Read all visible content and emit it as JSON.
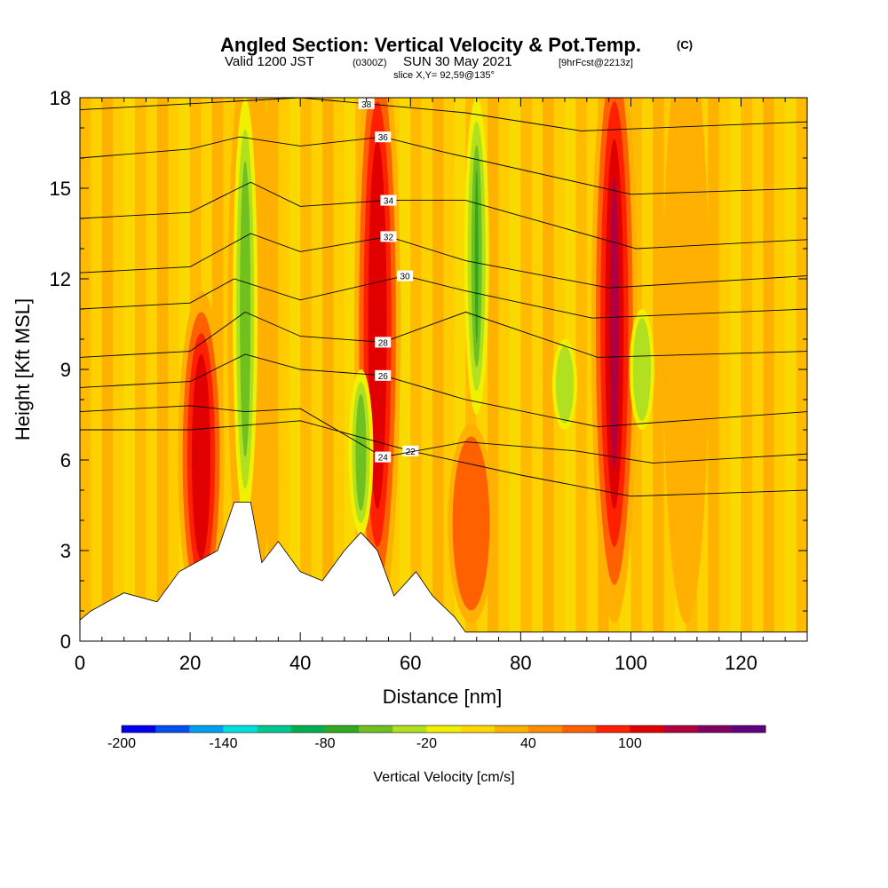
{
  "title": {
    "main": "Angled Section: Vertical Velocity & Pot.Temp.",
    "main_unit": "(C)",
    "valid_prefix": "Valid 1200 JST",
    "valid_utc": "(0300Z)",
    "valid_date": "SUN 30 May 2021",
    "valid_fcst": "[9hrFcst@2213z]",
    "slice": "slice X,Y= 92,59@135°"
  },
  "chart_data": {
    "type": "heatmap",
    "xlabel": "Distance [nm]",
    "ylabel": "Height [Kft MSL]",
    "xlim": [
      0,
      132
    ],
    "ylim": [
      0,
      18
    ],
    "x_ticks": [
      "0",
      "20",
      "40",
      "60",
      "80",
      "100",
      "120"
    ],
    "y_ticks": [
      "0",
      "3",
      "6",
      "9",
      "12",
      "15",
      "18"
    ],
    "colorbar": {
      "label": "Vertical Velocity [cm/s]",
      "tick_labels": [
        "-200",
        "-140",
        "-80",
        "-20",
        "40",
        "100"
      ],
      "colors": [
        "#0000f0",
        "#0050f0",
        "#00a0f0",
        "#00e0e0",
        "#00c890",
        "#00b050",
        "#30a820",
        "#70c020",
        "#b0e020",
        "#f0f000",
        "#ffd800",
        "#ffb000",
        "#ff8c00",
        "#ff6000",
        "#ff2000",
        "#e00000",
        "#b00040",
        "#800060",
        "#600080"
      ]
    },
    "updraft_columns": [
      {
        "x": 22,
        "top": 10.0,
        "strength": 100
      },
      {
        "x": 31,
        "top": 18.0,
        "strength": 40
      },
      {
        "x": 54,
        "top": 18.0,
        "strength": 100
      },
      {
        "x": 71,
        "top": 6.0,
        "strength": 60
      },
      {
        "x": 97,
        "top": 18.0,
        "strength": 120
      },
      {
        "x": 110,
        "top": 18.0,
        "strength": 40
      }
    ],
    "downdraft_columns": [
      {
        "x": 30,
        "bottom": 4.0,
        "top": 18.0,
        "strength": -60
      },
      {
        "x": 51,
        "bottom": 3.5,
        "top": 9.0,
        "strength": -60
      },
      {
        "x": 72,
        "bottom": 7.5,
        "top": 18.0,
        "strength": -80
      },
      {
        "x": 88,
        "bottom": 7.0,
        "top": 10.0,
        "strength": -50
      },
      {
        "x": 102,
        "bottom": 7.0,
        "top": 11.0,
        "strength": -40
      }
    ],
    "terrain": [
      [
        0,
        0.7
      ],
      [
        2,
        1.0
      ],
      [
        8,
        1.6
      ],
      [
        14,
        1.3
      ],
      [
        18,
        2.3
      ],
      [
        25,
        3.0
      ],
      [
        28,
        4.6
      ],
      [
        31,
        4.6
      ],
      [
        33,
        2.6
      ],
      [
        36,
        3.3
      ],
      [
        40,
        2.3
      ],
      [
        44,
        2.0
      ],
      [
        48,
        3.0
      ],
      [
        51,
        3.6
      ],
      [
        54,
        3.0
      ],
      [
        57,
        1.5
      ],
      [
        61,
        2.3
      ],
      [
        64,
        1.5
      ],
      [
        68,
        0.8
      ],
      [
        70,
        0.3
      ],
      [
        80,
        0.3
      ],
      [
        132,
        0.3
      ]
    ],
    "isentropes": [
      {
        "label": "22",
        "x": [
          0,
          20,
          40,
          60,
          80,
          100,
          132
        ],
        "y": [
          7.0,
          7.0,
          7.3,
          6.3,
          5.5,
          4.8,
          5.0
        ]
      },
      {
        "label": "24",
        "x": [
          0,
          20,
          30,
          40,
          55,
          70,
          90,
          104,
          132
        ],
        "y": [
          7.6,
          7.8,
          7.6,
          7.7,
          6.1,
          6.6,
          6.3,
          5.9,
          6.2
        ]
      },
      {
        "label": "26",
        "x": [
          0,
          20,
          30,
          40,
          55,
          70,
          94,
          132
        ],
        "y": [
          8.4,
          8.6,
          9.5,
          9.0,
          8.8,
          8.0,
          7.1,
          7.6
        ]
      },
      {
        "label": "28",
        "x": [
          0,
          20,
          30,
          40,
          55,
          70,
          94,
          132
        ],
        "y": [
          9.4,
          9.6,
          10.9,
          10.1,
          9.9,
          10.9,
          9.4,
          9.6
        ]
      },
      {
        "label": "30",
        "x": [
          0,
          20,
          28,
          40,
          59,
          70,
          93,
          132
        ],
        "y": [
          11.0,
          11.2,
          12.0,
          11.3,
          12.1,
          11.6,
          10.7,
          11.0
        ]
      },
      {
        "label": "32",
        "x": [
          0,
          20,
          31,
          40,
          56,
          70,
          96,
          132
        ],
        "y": [
          12.2,
          12.4,
          13.5,
          12.9,
          13.4,
          12.6,
          11.7,
          12.1
        ]
      },
      {
        "label": "34",
        "x": [
          0,
          20,
          31,
          40,
          56,
          70,
          101,
          132
        ],
        "y": [
          14.0,
          14.2,
          15.2,
          14.4,
          14.6,
          14.6,
          13.0,
          13.3
        ]
      },
      {
        "label": "36",
        "x": [
          0,
          20,
          29,
          40,
          55,
          66,
          100,
          132
        ],
        "y": [
          16.0,
          16.3,
          16.7,
          16.4,
          16.7,
          16.2,
          14.8,
          15.0
        ]
      },
      {
        "label": "38",
        "x": [
          0,
          20,
          40,
          52,
          70,
          91,
          132
        ],
        "y": [
          17.6,
          17.8,
          18.0,
          17.8,
          17.5,
          16.9,
          17.2
        ]
      }
    ]
  }
}
